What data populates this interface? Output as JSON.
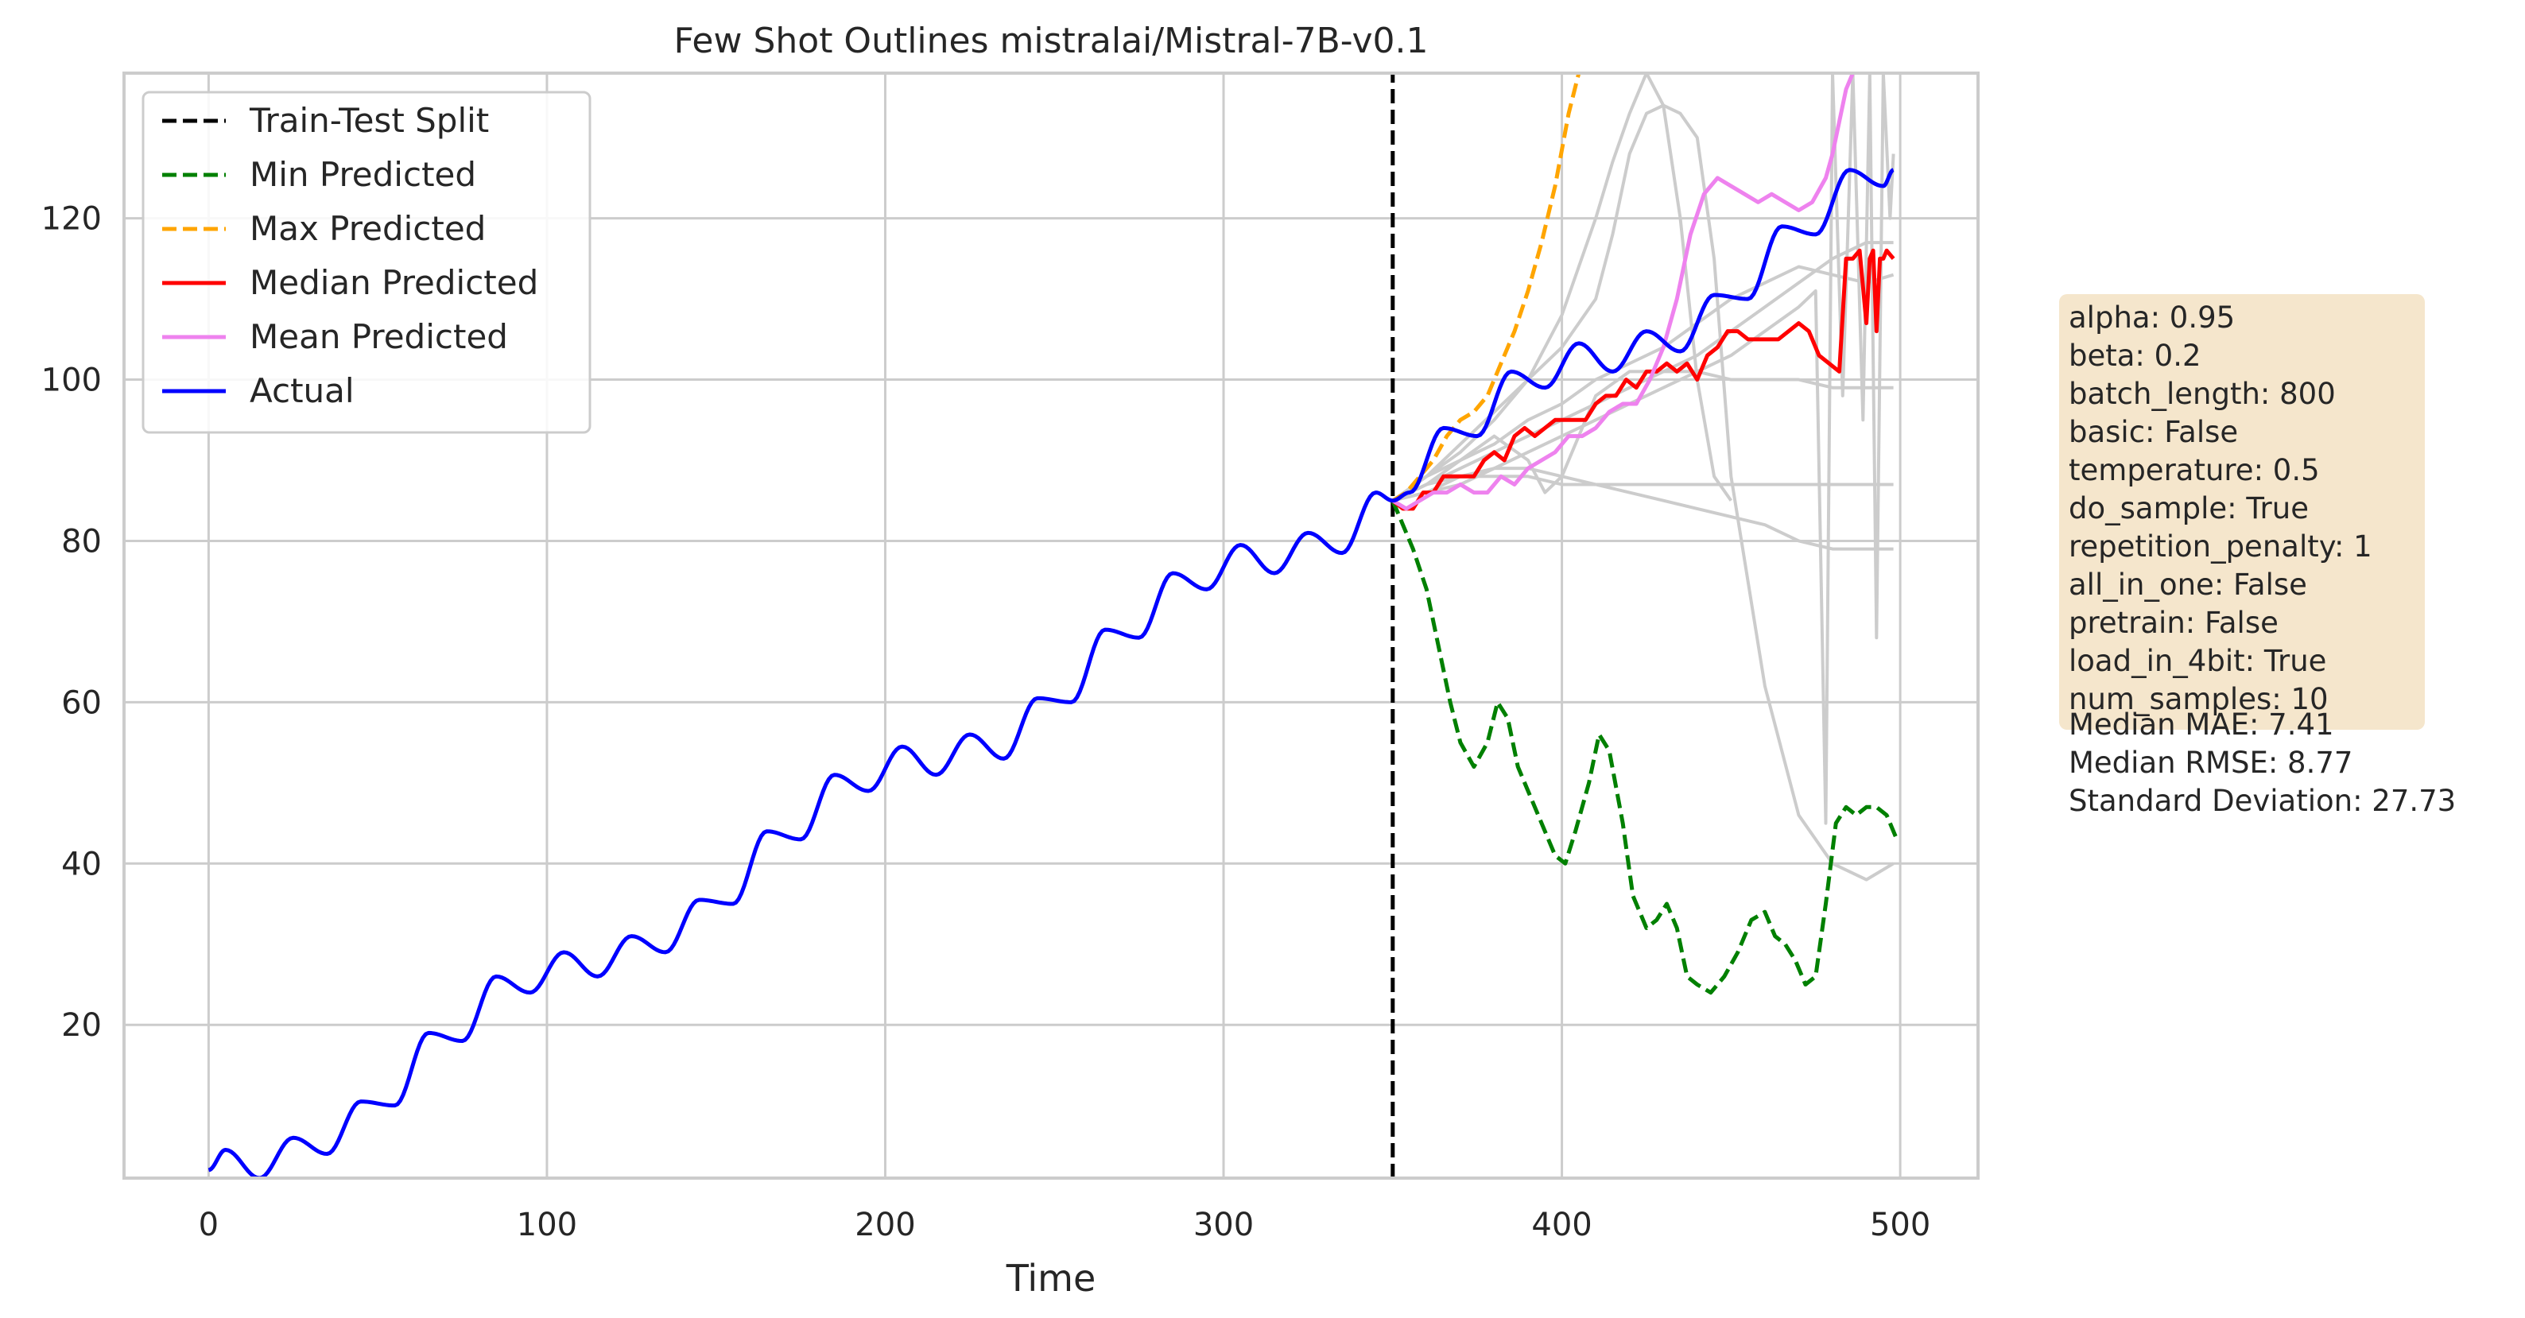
{
  "chart_data": {
    "type": "line",
    "title": "Few Shot Outlines mistralai/Mistral-7B-v0.1",
    "xlabel": "Time",
    "ylabel": "",
    "xlim": [
      -25,
      523
    ],
    "ylim": [
      1,
      138
    ],
    "xticks": [
      0,
      100,
      200,
      300,
      400,
      500
    ],
    "yticks": [
      20,
      40,
      60,
      80,
      100,
      120
    ],
    "grid": true,
    "legend_position": "top-left",
    "split_x": 350,
    "series": [
      {
        "name": "Train-Test Split",
        "color": "#000000",
        "dashed": true,
        "x": [
          350,
          350
        ],
        "y": [
          1,
          138
        ]
      },
      {
        "name": "Min Predicted",
        "color": "#008000",
        "dashed": true,
        "x": [
          350,
          353,
          356,
          360,
          364,
          367,
          370,
          374,
          378,
          381,
          384,
          387,
          390,
          394,
          398,
          401,
          404,
          408,
          411,
          414,
          418,
          421,
          425,
          428,
          431,
          434,
          437,
          440,
          444,
          448,
          452,
          456,
          460,
          463,
          466,
          469,
          472,
          475,
          478,
          481,
          484,
          487,
          490,
          493,
          496,
          499
        ],
        "y": [
          85,
          82,
          79,
          74,
          66,
          60,
          55,
          52,
          55,
          60,
          58,
          52,
          49,
          45,
          41,
          40,
          44,
          50,
          56,
          54,
          45,
          36,
          32,
          33,
          35,
          32,
          26,
          25,
          24,
          26,
          29,
          33,
          34,
          31,
          30,
          28,
          25,
          26,
          35,
          45,
          47,
          46,
          47,
          47,
          46,
          43
        ]
      },
      {
        "name": "Max Predicted",
        "color": "#FFA500",
        "dashed": true,
        "x": [
          350,
          354,
          358,
          362,
          366,
          370,
          374,
          378,
          382,
          386,
          390,
          394,
          398,
          402,
          405
        ],
        "y": [
          85,
          86,
          88,
          90,
          93,
          95,
          96,
          98,
          102,
          106,
          111,
          117,
          124,
          133,
          138
        ]
      },
      {
        "name": "Median Predicted",
        "color": "#FF0000",
        "dashed": false,
        "x": [
          350,
          353,
          356,
          359,
          362,
          365,
          368,
          371,
          374,
          377,
          380,
          383,
          386,
          389,
          392,
          395,
          398,
          401,
          404,
          407,
          410,
          413,
          416,
          419,
          422,
          425,
          428,
          431,
          434,
          437,
          440,
          443,
          446,
          449,
          452,
          455,
          458,
          461,
          464,
          467,
          470,
          473,
          476,
          479,
          482,
          484,
          486,
          488,
          490,
          491,
          492,
          493,
          494,
          495,
          496,
          498
        ],
        "y": [
          85,
          84,
          84,
          86,
          86,
          88,
          88,
          88,
          88,
          90,
          91,
          90,
          93,
          94,
          93,
          94,
          95,
          95,
          95,
          95,
          97,
          98,
          98,
          100,
          99,
          101,
          101,
          102,
          101,
          102,
          100,
          103,
          104,
          106,
          106,
          105,
          105,
          105,
          105,
          106,
          107,
          106,
          103,
          102,
          101,
          115,
          115,
          116,
          107,
          115,
          116,
          106,
          115,
          115,
          116,
          115
        ]
      },
      {
        "name": "Mean Predicted",
        "color": "#EE82EE",
        "dashed": false,
        "x": [
          350,
          354,
          358,
          362,
          366,
          370,
          374,
          378,
          382,
          386,
          390,
          394,
          398,
          402,
          406,
          410,
          414,
          418,
          422,
          426,
          430,
          434,
          438,
          442,
          446,
          450,
          454,
          458,
          462,
          466,
          470,
          474,
          478,
          480,
          482,
          484,
          486
        ],
        "y": [
          85,
          84,
          85,
          86,
          86,
          87,
          86,
          86,
          88,
          87,
          89,
          90,
          91,
          93,
          93,
          94,
          96,
          97,
          97,
          100,
          104,
          110,
          118,
          123,
          125,
          124,
          123,
          122,
          123,
          122,
          121,
          122,
          125,
          128,
          132,
          136,
          138
        ]
      },
      {
        "name": "Actual",
        "color": "#0000FF",
        "dashed": false,
        "generator": "sine-trend",
        "x_start": 0,
        "x_end": 498,
        "y_points": [
          [
            0,
            2
          ],
          [
            5,
            4.5
          ],
          [
            15,
            1
          ],
          [
            25,
            6
          ],
          [
            35,
            4
          ],
          [
            45,
            10.5
          ],
          [
            55,
            10
          ],
          [
            65,
            19
          ],
          [
            75,
            18
          ],
          [
            85,
            26
          ],
          [
            95,
            24
          ],
          [
            105,
            29
          ],
          [
            115,
            26
          ],
          [
            125,
            31
          ],
          [
            135,
            29
          ],
          [
            145,
            35.5
          ],
          [
            155,
            35
          ],
          [
            165,
            44
          ],
          [
            175,
            43
          ],
          [
            185,
            51
          ],
          [
            195,
            49
          ],
          [
            205,
            54.5
          ],
          [
            215,
            51
          ],
          [
            225,
            56
          ],
          [
            235,
            53
          ],
          [
            245,
            60.5
          ],
          [
            255,
            60
          ],
          [
            265,
            69
          ],
          [
            275,
            68
          ],
          [
            285,
            76
          ],
          [
            295,
            74
          ],
          [
            305,
            79.5
          ],
          [
            315,
            76
          ],
          [
            325,
            81
          ],
          [
            335,
            78.5
          ],
          [
            345,
            86
          ],
          [
            350,
            85
          ],
          [
            355,
            86
          ],
          [
            365,
            94
          ],
          [
            375,
            93
          ],
          [
            385,
            101
          ],
          [
            395,
            99
          ],
          [
            405,
            104.5
          ],
          [
            415,
            101
          ],
          [
            425,
            106
          ],
          [
            435,
            103.5
          ],
          [
            445,
            110.5
          ],
          [
            455,
            110
          ],
          [
            465,
            119
          ],
          [
            475,
            118
          ],
          [
            485,
            126
          ],
          [
            495,
            124
          ],
          [
            498,
            126
          ]
        ]
      }
    ],
    "samples": [
      {
        "color": "#cccccc",
        "x": [
          350,
          360,
          370,
          380,
          390,
          400,
          410,
          420,
          430,
          440,
          450,
          460,
          470,
          480,
          490,
          498
        ],
        "y": [
          85,
          87,
          88,
          88,
          88,
          87,
          87,
          87,
          87,
          87,
          87,
          87,
          87,
          87,
          87,
          87
        ]
      },
      {
        "color": "#cccccc",
        "x": [
          350,
          360,
          370,
          380,
          390,
          400,
          410,
          420,
          430,
          440,
          450,
          460,
          470,
          480,
          490,
          498
        ],
        "y": [
          85,
          86,
          88,
          89,
          89,
          88,
          87,
          86,
          85,
          84,
          83,
          82,
          80,
          79,
          79,
          79
        ]
      },
      {
        "color": "#cccccc",
        "x": [
          350,
          360,
          370,
          380,
          390,
          395,
          400,
          410,
          420,
          430,
          440,
          450,
          460,
          470,
          480,
          490,
          498
        ],
        "y": [
          85,
          88,
          90,
          93,
          90,
          86,
          88,
          98,
          101,
          101,
          101,
          100,
          100,
          100,
          99,
          99,
          99
        ]
      },
      {
        "color": "#cccccc",
        "x": [
          350,
          360,
          370,
          380,
          390,
          400,
          410,
          415,
          420,
          425,
          430,
          435,
          440,
          445,
          450,
          460,
          470,
          480,
          490,
          498
        ],
        "y": [
          85,
          88,
          92,
          96,
          100,
          104,
          110,
          118,
          128,
          133,
          134,
          133,
          130,
          115,
          88,
          62,
          46,
          40,
          38,
          40
        ]
      },
      {
        "color": "#cccccc",
        "x": [
          350,
          360,
          370,
          380,
          390,
          400,
          410,
          420,
          430,
          440,
          450,
          460,
          470,
          480,
          490,
          498
        ],
        "y": [
          85,
          87,
          89,
          91,
          93,
          95,
          97,
          99,
          101,
          103,
          106,
          109,
          112,
          115,
          117,
          117
        ]
      },
      {
        "color": "#cccccc",
        "x": [
          350,
          360,
          370,
          380,
          390,
          400,
          405,
          410,
          415,
          420,
          425,
          430,
          435,
          440,
          445,
          450
        ],
        "y": [
          85,
          88,
          91,
          95,
          100,
          108,
          114,
          120,
          127,
          133,
          138,
          134,
          120,
          100,
          88,
          85
        ]
      },
      {
        "color": "#cccccc",
        "x": [
          350,
          360,
          370,
          380,
          390,
          400,
          410,
          420,
          430,
          440,
          450,
          460,
          470,
          475,
          478,
          480,
          483,
          486,
          489,
          491,
          493,
          495,
          497,
          498
        ],
        "y": [
          85,
          86,
          87,
          89,
          91,
          93,
          95,
          97,
          99,
          101,
          103,
          106,
          109,
          111,
          45,
          138,
          98,
          138,
          95,
          138,
          68,
          138,
          120,
          128
        ]
      },
      {
        "color": "#cccccc",
        "x": [
          350,
          360,
          370,
          380,
          390,
          400,
          410,
          420,
          430,
          440,
          450,
          460,
          470,
          480,
          490,
          498
        ],
        "y": [
          85,
          87,
          90,
          92,
          95,
          97,
          100,
          102,
          104,
          107,
          110,
          112,
          114,
          113,
          112,
          113
        ]
      }
    ]
  },
  "stats_box": {
    "lines": [
      "alpha: 0.95",
      "beta: 0.2",
      "batch_length: 800",
      "basic: False",
      "temperature: 0.5",
      "do_sample: True",
      "repetition_penalty: 1",
      "all_in_one: False",
      "pretrain: False",
      "load_in_4bit: True",
      "num_samples: 10"
    ],
    "extra_lines": [
      "Median MAE: 7.41",
      "Median RMSE: 8.77",
      "Standard Deviation: 27.73"
    ],
    "background": "#F5E6CC"
  }
}
